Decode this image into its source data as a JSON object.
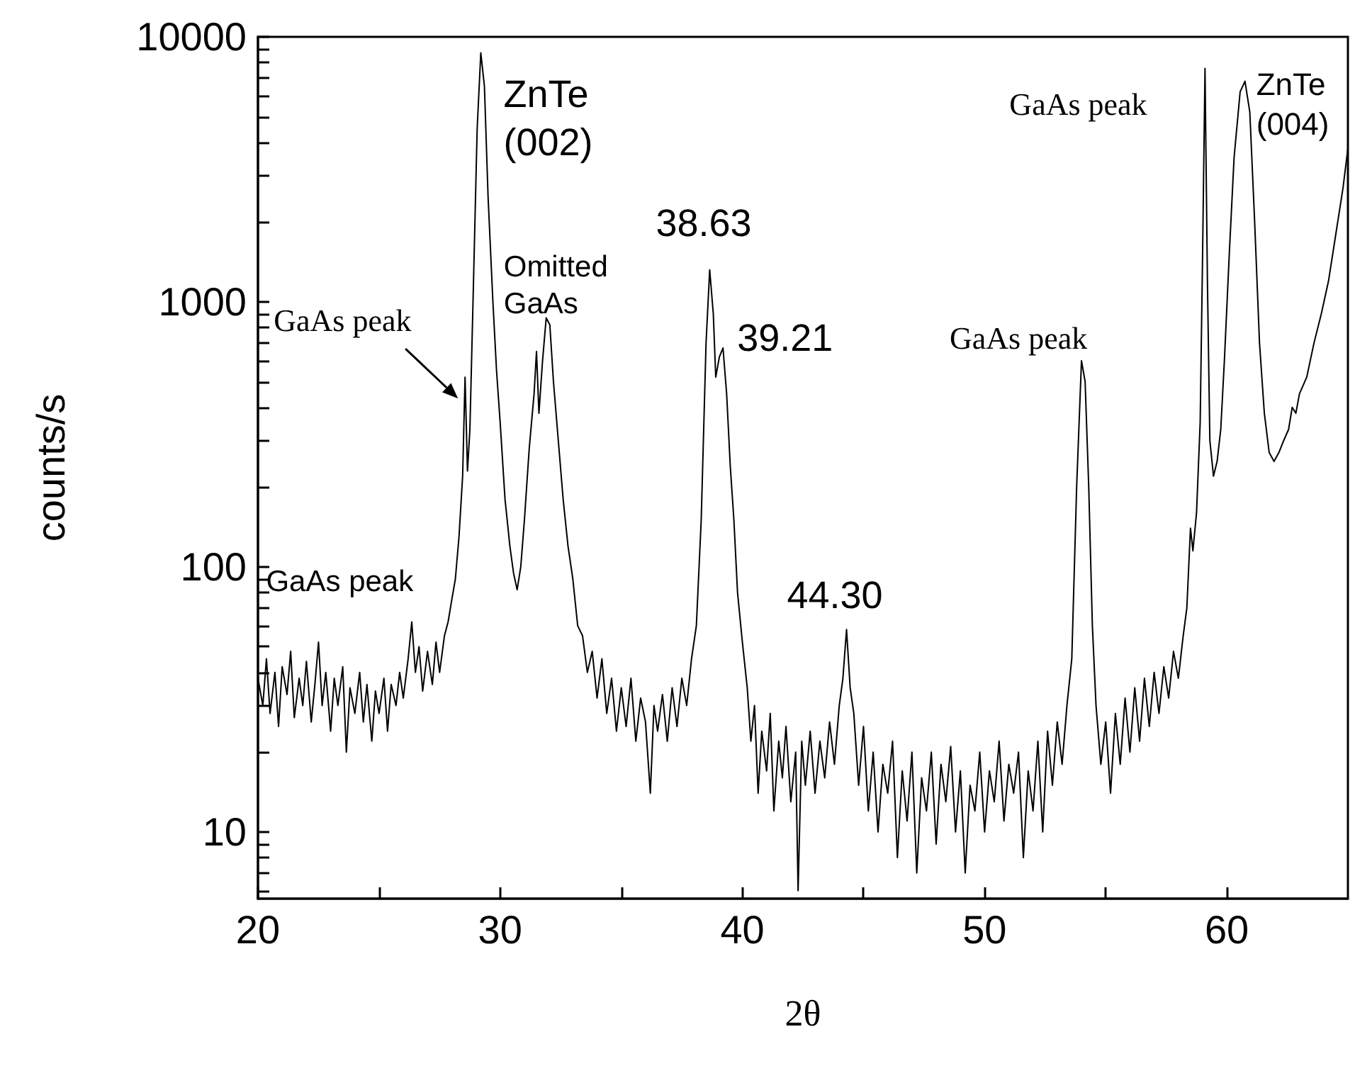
{
  "chart_data": {
    "type": "line",
    "xlabel": "2θ",
    "ylabel": "counts/s",
    "log": "y",
    "grid": false,
    "marker": "none",
    "line_style": "solid",
    "xlim": [
      20,
      65
    ],
    "xticks": [
      20,
      {
        "value": 25,
        "label": null
      },
      30,
      {
        "value": 35,
        "label": null
      },
      40,
      {
        "value": 45,
        "label": null
      },
      50,
      {
        "value": 55,
        "label": null
      },
      60
    ],
    "ylim": [
      5.6,
      10000
    ],
    "yticks": [
      {
        "value": 6,
        "label": null
      },
      {
        "value": 7,
        "label": null
      },
      {
        "value": 8,
        "label": null
      },
      {
        "value": 9,
        "label": null
      },
      10,
      {
        "value": 20,
        "label": null
      },
      {
        "value": 30,
        "label": null
      },
      {
        "value": 40,
        "label": null
      },
      {
        "value": 50,
        "label": null
      },
      {
        "value": 60,
        "label": null
      },
      {
        "value": 70,
        "label": null
      },
      {
        "value": 80,
        "label": null
      },
      {
        "value": 90,
        "label": null
      },
      100,
      {
        "value": 200,
        "label": null
      },
      {
        "value": 300,
        "label": null
      },
      {
        "value": 400,
        "label": null
      },
      {
        "value": 500,
        "label": null
      },
      {
        "value": 600,
        "label": null
      },
      {
        "value": 700,
        "label": null
      },
      {
        "value": 800,
        "label": null
      },
      {
        "value": 900,
        "label": null
      },
      1000,
      {
        "value": 2000,
        "label": null
      },
      {
        "value": 3000,
        "label": null
      },
      {
        "value": 4000,
        "label": null
      },
      {
        "value": 5000,
        "label": null
      },
      {
        "value": 6000,
        "label": null
      },
      {
        "value": 7000,
        "label": null
      },
      {
        "value": 8000,
        "label": null
      },
      {
        "value": 9000,
        "label": null
      },
      10000
    ],
    "annotations": [
      {
        "text": "ZnTe\n(002)",
        "x": 29.2,
        "y": 8700
      },
      {
        "text": "Omitted\nGaAs",
        "x": 31.9,
        "y": 870
      },
      {
        "text": "38.63",
        "x": 38.65,
        "y": 1320
      },
      {
        "text": "39.21",
        "x": 39.2,
        "y": 670
      },
      {
        "text": "44.30",
        "x": 44.3,
        "y": 58
      },
      {
        "text": "GaAs peak",
        "x": 28.0,
        "y": 75
      },
      {
        "text": "GaAs peak",
        "x": 28.55,
        "y": 520
      },
      {
        "text": "GaAs peak",
        "x": 54.0,
        "y": 600
      },
      {
        "text": "GaAs peak",
        "x": 59.1,
        "y": 7600
      },
      {
        "text": "ZnTe\n(004)",
        "x": 60.75,
        "y": 6800
      }
    ],
    "series": [
      {
        "color": "#000000",
        "x": [
          20.0,
          20.2,
          20.35,
          20.5,
          20.7,
          20.85,
          21.0,
          21.2,
          21.35,
          21.5,
          21.7,
          21.85,
          22.0,
          22.2,
          22.35,
          22.5,
          22.65,
          22.8,
          23.0,
          23.15,
          23.3,
          23.5,
          23.65,
          23.8,
          24.0,
          24.2,
          24.35,
          24.5,
          24.7,
          24.85,
          25.0,
          25.2,
          25.35,
          25.5,
          25.7,
          25.85,
          26.0,
          26.2,
          26.35,
          26.5,
          26.65,
          26.8,
          27.0,
          27.2,
          27.35,
          27.5,
          27.7,
          27.85,
          28.0,
          28.15,
          28.3,
          28.45,
          28.55,
          28.65,
          28.75,
          28.9,
          29.05,
          29.2,
          29.35,
          29.5,
          29.7,
          29.85,
          30.0,
          30.2,
          30.4,
          30.55,
          30.7,
          30.85,
          31.0,
          31.2,
          31.4,
          31.5,
          31.6,
          31.75,
          31.9,
          32.05,
          32.2,
          32.4,
          32.6,
          32.8,
          33.0,
          33.2,
          33.4,
          33.6,
          33.8,
          34.0,
          34.2,
          34.4,
          34.6,
          34.8,
          35.0,
          35.2,
          35.4,
          35.6,
          35.8,
          36.0,
          36.2,
          36.35,
          36.5,
          36.7,
          36.9,
          37.1,
          37.3,
          37.5,
          37.7,
          37.9,
          38.1,
          38.3,
          38.5,
          38.65,
          38.8,
          38.9,
          39.05,
          39.2,
          39.35,
          39.5,
          39.65,
          39.8,
          40.0,
          40.2,
          40.35,
          40.5,
          40.65,
          40.8,
          41.0,
          41.15,
          41.3,
          41.5,
          41.65,
          41.8,
          42.0,
          42.2,
          42.3,
          42.45,
          42.6,
          42.8,
          43.0,
          43.2,
          43.4,
          43.6,
          43.8,
          44.0,
          44.15,
          44.3,
          44.45,
          44.6,
          44.8,
          45.0,
          45.2,
          45.4,
          45.6,
          45.8,
          46.0,
          46.2,
          46.4,
          46.6,
          46.8,
          47.0,
          47.2,
          47.4,
          47.6,
          47.8,
          48.0,
          48.2,
          48.4,
          48.6,
          48.8,
          49.0,
          49.2,
          49.4,
          49.6,
          49.8,
          50.0,
          50.2,
          50.4,
          50.6,
          50.8,
          51.0,
          51.2,
          51.4,
          51.6,
          51.8,
          52.0,
          52.2,
          52.4,
          52.6,
          52.8,
          53.0,
          53.2,
          53.4,
          53.6,
          53.8,
          54.0,
          54.15,
          54.3,
          54.45,
          54.6,
          54.8,
          55.0,
          55.2,
          55.4,
          55.6,
          55.8,
          56.0,
          56.2,
          56.4,
          56.6,
          56.8,
          57.0,
          57.2,
          57.4,
          57.6,
          57.8,
          58.0,
          58.2,
          58.35,
          58.5,
          58.6,
          58.75,
          58.9,
          59.0,
          59.1,
          59.2,
          59.3,
          59.45,
          59.6,
          59.75,
          59.9,
          60.1,
          60.3,
          60.55,
          60.75,
          60.95,
          61.15,
          61.35,
          61.55,
          61.75,
          61.95,
          62.15,
          62.35,
          62.55,
          62.7,
          62.85,
          63.0,
          63.3,
          63.6,
          63.9,
          64.2,
          64.5,
          64.8,
          65.0
        ],
        "values": [
          38,
          30,
          45,
          28,
          40,
          25,
          42,
          33,
          48,
          27,
          38,
          30,
          44,
          26,
          36,
          52,
          30,
          40,
          24,
          38,
          30,
          42,
          20,
          35,
          28,
          40,
          26,
          36,
          22,
          34,
          28,
          38,
          24,
          36,
          30,
          40,
          32,
          45,
          62,
          40,
          50,
          34,
          48,
          36,
          52,
          40,
          55,
          62,
          75,
          90,
          130,
          220,
          520,
          230,
          330,
          1200,
          4500,
          8700,
          6500,
          2500,
          1000,
          550,
          350,
          180,
          120,
          95,
          82,
          100,
          150,
          280,
          450,
          650,
          380,
          600,
          870,
          820,
          500,
          300,
          180,
          120,
          90,
          60,
          55,
          40,
          48,
          32,
          45,
          28,
          38,
          24,
          35,
          25,
          38,
          22,
          32,
          26,
          14,
          30,
          24,
          33,
          22,
          35,
          25,
          38,
          30,
          45,
          60,
          150,
          700,
          1320,
          900,
          520,
          620,
          670,
          450,
          240,
          150,
          80,
          52,
          35,
          22,
          30,
          14,
          24,
          17,
          28,
          12,
          22,
          16,
          25,
          13,
          20,
          6,
          22,
          15,
          24,
          14,
          22,
          16,
          26,
          18,
          30,
          38,
          58,
          35,
          28,
          15,
          25,
          12,
          20,
          10,
          18,
          14,
          22,
          8,
          17,
          11,
          20,
          7,
          16,
          12,
          20,
          9,
          18,
          13,
          21,
          10,
          17,
          7,
          15,
          12,
          20,
          10,
          17,
          13,
          22,
          11,
          18,
          14,
          20,
          8,
          17,
          12,
          22,
          10,
          24,
          15,
          26,
          18,
          30,
          45,
          200,
          600,
          500,
          200,
          60,
          30,
          18,
          26,
          14,
          28,
          18,
          32,
          20,
          35,
          22,
          38,
          25,
          40,
          28,
          42,
          32,
          48,
          38,
          55,
          70,
          140,
          115,
          160,
          350,
          1500,
          7600,
          1200,
          300,
          220,
          250,
          330,
          600,
          1500,
          3500,
          6200,
          6800,
          5200,
          2000,
          700,
          380,
          270,
          250,
          270,
          300,
          330,
          400,
          380,
          450,
          520,
          700,
          900,
          1200,
          1800,
          2700,
          3800
        ]
      }
    ]
  }
}
